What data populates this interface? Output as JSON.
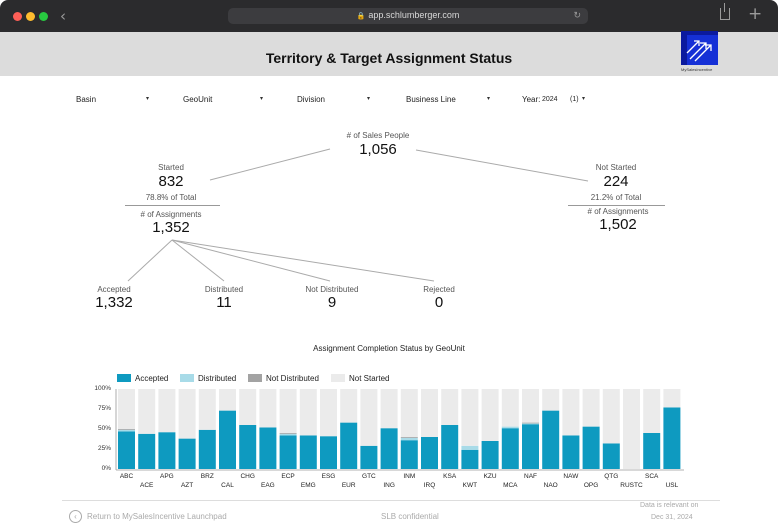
{
  "browser": {
    "url": "app.schlumberger.com",
    "traffic_lights": [
      "#fe5f57",
      "#febc2e",
      "#28c840"
    ]
  },
  "header": {
    "title": "Territory & Target Assignment Status",
    "logo_text": "MySalesIncentive"
  },
  "filters": {
    "basin": "Basin",
    "geounit": "GeoUnit",
    "division": "Division",
    "business_line": "Business Line",
    "year_label": "Year:",
    "year_value": "2024",
    "year_count": "(1)"
  },
  "tree": {
    "sales_people_label": "# of Sales People",
    "sales_people_value": "1,056",
    "started_label": "Started",
    "started_value": "832",
    "started_pct": "78.8% of Total",
    "started_assign_label": "# of Assignments",
    "started_assign_value": "1,352",
    "not_started_label": "Not Started",
    "not_started_value": "224",
    "not_started_pct": "21.2% of Total",
    "not_started_assign_label": "# of Assignments",
    "not_started_assign_value": "1,502",
    "accepted_label": "Accepted",
    "accepted_value": "1,332",
    "distributed_label": "Distributed",
    "distributed_value": "11",
    "not_distributed_label": "Not Distributed",
    "not_distributed_value": "9",
    "rejected_label": "Rejected",
    "rejected_value": "0"
  },
  "chart_data": {
    "type": "bar",
    "title": "Assignment Completion Status by GeoUnit",
    "stacked": true,
    "ylim": [
      0,
      100
    ],
    "yticks": [
      "100%",
      "75%",
      "50%",
      "25%",
      "0%"
    ],
    "legend": [
      "Accepted",
      "Distributed",
      "Not Distributed",
      "Not Started"
    ],
    "colors": {
      "Accepted": "#0e9ac0",
      "Distributed": "#a8dbe8",
      "Not Distributed": "#a3a3a3",
      "Not Started": "#ebebeb"
    },
    "categories": [
      "ABC",
      "ACE",
      "APG",
      "AZT",
      "BRZ",
      "CAL",
      "CHG",
      "EAG",
      "ECP",
      "EMG",
      "ESG",
      "EUR",
      "GTC",
      "ING",
      "INM",
      "IRQ",
      "KSA",
      "KWT",
      "KZU",
      "MCA",
      "NAF",
      "NAO",
      "NAW",
      "OPG",
      "QTG",
      "RUSTC",
      "SCA",
      "USL"
    ],
    "series": [
      {
        "name": "Accepted",
        "values": [
          47,
          44,
          46,
          38,
          49,
          73,
          55,
          52,
          42,
          42,
          41,
          58,
          29,
          51,
          36,
          40,
          55,
          24,
          35,
          51,
          56,
          73,
          42,
          53,
          32,
          0,
          45,
          77
        ]
      },
      {
        "name": "Distributed",
        "values": [
          2,
          0,
          0,
          0,
          0,
          0,
          0,
          0,
          2,
          0,
          0,
          0,
          0,
          0,
          3,
          0,
          0,
          5,
          0,
          2,
          1,
          0,
          0,
          0,
          0,
          0,
          0,
          0
        ]
      },
      {
        "name": "Not Distributed",
        "values": [
          1,
          0,
          0,
          0,
          0,
          0,
          0,
          0,
          1,
          0,
          0,
          0,
          0,
          0,
          1,
          0,
          0,
          0,
          0,
          0,
          1,
          0,
          0,
          0,
          0,
          0,
          0,
          0
        ]
      },
      {
        "name": "Not Started",
        "values": [
          50,
          56,
          54,
          62,
          51,
          27,
          45,
          48,
          55,
          58,
          59,
          42,
          71,
          49,
          60,
          60,
          45,
          71,
          65,
          47,
          42,
          27,
          58,
          47,
          68,
          100,
          55,
          23
        ]
      }
    ]
  },
  "footer": {
    "return_label": "Return to MySalesIncentive Launchpad",
    "confidential": "SLB confidential",
    "data_relevant": "Data is relevant on",
    "data_date": "Dec 31, 2024"
  }
}
